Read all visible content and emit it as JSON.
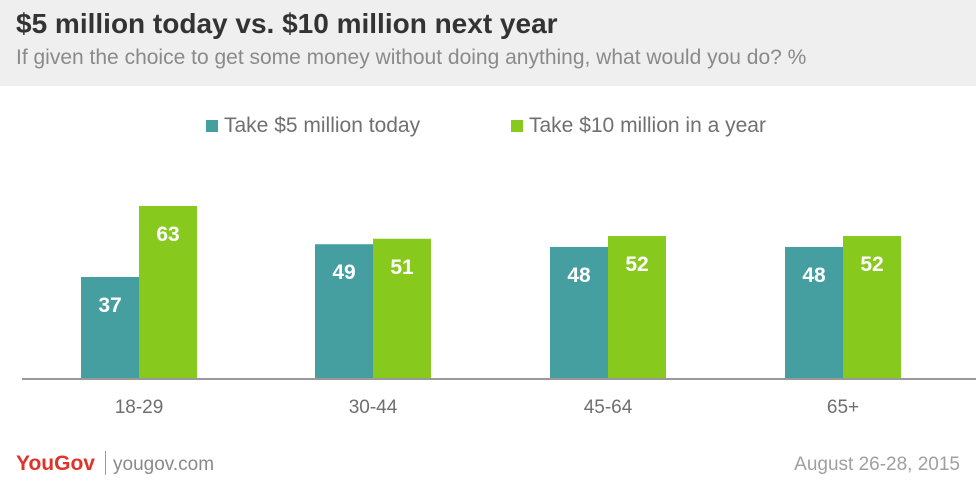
{
  "title": "$5 million today vs. $10 million next year",
  "subtitle": "If given the choice to get some money without doing anything, what would you do? %",
  "footer": {
    "logo": "YouGov",
    "site": "yougov.com",
    "date": "August 26-28, 2015"
  },
  "colors": {
    "take_5_today": "#459ea0",
    "take_10_year": "#87c91d",
    "axis": "#999999"
  },
  "chart_data": {
    "type": "bar",
    "categories": [
      "18-29",
      "30-44",
      "45-64",
      "65+"
    ],
    "series": [
      {
        "name": "Take $5 million today",
        "color": "#459ea0",
        "values": [
          37,
          49,
          48,
          48
        ]
      },
      {
        "name": "Take $10 million in a year",
        "color": "#87c91d",
        "values": [
          63,
          51,
          52,
          52
        ]
      }
    ],
    "ylim": [
      0,
      63
    ],
    "grid": false,
    "legend_position": "top-center"
  }
}
